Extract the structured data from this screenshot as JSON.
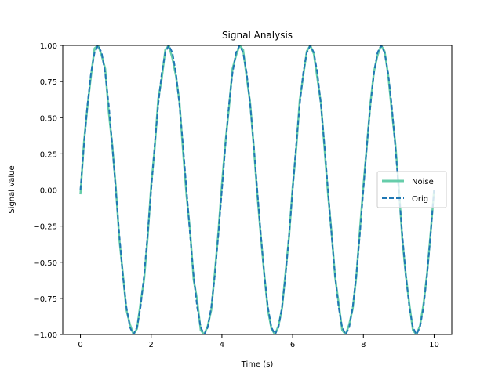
{
  "chart_data": {
    "type": "line",
    "title": "Signal Analysis",
    "xlabel": "Time (s)",
    "ylabel": "Signal Value",
    "xlim": [
      -0.5,
      10.5
    ],
    "ylim": [
      -1.0,
      1.0
    ],
    "x_ticks": [
      0,
      2,
      4,
      6,
      8,
      10
    ],
    "x_tick_labels": [
      "0",
      "2",
      "4",
      "6",
      "8",
      "10"
    ],
    "y_ticks": [
      -1.0,
      -0.75,
      -0.5,
      -0.25,
      0.0,
      0.25,
      0.5,
      0.75,
      1.0
    ],
    "y_tick_labels": [
      "−1.00",
      "−0.75",
      "−0.50",
      "−0.25",
      "0.00",
      "0.25",
      "0.50",
      "0.75",
      "1.00"
    ],
    "grid": false,
    "legend_position": "center-right",
    "series": [
      {
        "name": "Noise",
        "color": "#66cdaa",
        "style": "solid",
        "description_x_range": [
          0,
          10
        ],
        "x": [
          0.0,
          0.1,
          0.2,
          0.3,
          0.4,
          0.5,
          0.6,
          0.7,
          0.8,
          0.9,
          1.0,
          1.1,
          1.2,
          1.3,
          1.4,
          1.5,
          1.6,
          1.7,
          1.8,
          1.9,
          2.0,
          2.1,
          2.2,
          2.3,
          2.4,
          2.5,
          2.6,
          2.7,
          2.8,
          2.9,
          3.0,
          3.1,
          3.2,
          3.3,
          3.4,
          3.5,
          3.6,
          3.7,
          3.8,
          3.9,
          4.0,
          4.1,
          4.2,
          4.3,
          4.4,
          4.5,
          4.6,
          4.7,
          4.8,
          4.9,
          5.0,
          5.1,
          5.2,
          5.3,
          5.4,
          5.5,
          5.6,
          5.7,
          5.8,
          5.9,
          6.0,
          6.1,
          6.2,
          6.3,
          6.4,
          6.5,
          6.6,
          6.7,
          6.8,
          6.9,
          7.0,
          7.1,
          7.2,
          7.3,
          7.4,
          7.5,
          7.6,
          7.7,
          7.8,
          7.9,
          8.0,
          8.1,
          8.2,
          8.3,
          8.4,
          8.5,
          8.6,
          8.7,
          8.8,
          8.9,
          9.0,
          9.1,
          9.2,
          9.3,
          9.4,
          9.5,
          9.6,
          9.7,
          9.8,
          9.9,
          10.0
        ],
        "y": [
          -0.03,
          0.33,
          0.58,
          0.79,
          0.98,
          1.0,
          0.93,
          0.84,
          0.54,
          0.31,
          0.02,
          -0.34,
          -0.58,
          -0.83,
          -0.93,
          -1.0,
          -0.96,
          -0.78,
          -0.62,
          -0.33,
          0.03,
          0.29,
          0.63,
          0.77,
          0.97,
          1.0,
          0.91,
          0.79,
          0.61,
          0.27,
          -0.04,
          -0.28,
          -0.62,
          -0.76,
          -0.97,
          -1.0,
          -0.94,
          -0.83,
          -0.57,
          -0.29,
          0.04,
          0.33,
          0.57,
          0.84,
          0.93,
          1.0,
          0.97,
          0.78,
          0.6,
          0.3,
          -0.03,
          -0.32,
          -0.59,
          -0.83,
          -0.96,
          -1.0,
          -0.94,
          -0.82,
          -0.57,
          -0.32,
          0.02,
          0.28,
          0.62,
          0.79,
          0.96,
          1.0,
          0.94,
          0.77,
          0.6,
          0.29,
          -0.03,
          -0.29,
          -0.6,
          -0.78,
          -0.97,
          -1.0,
          -0.93,
          -0.82,
          -0.6,
          -0.28,
          0.03,
          0.31,
          0.6,
          0.82,
          0.93,
          1.0,
          0.96,
          0.8,
          0.55,
          0.33,
          0.03,
          -0.34,
          -0.59,
          -0.79,
          -0.97,
          -1.0,
          -0.94,
          -0.79,
          -0.58,
          -0.3,
          0.0
        ]
      },
      {
        "name": "Orig",
        "color": "#1f77b4",
        "style": "dashed",
        "formula": "sin(pi * t)",
        "x": [
          0.0,
          0.1,
          0.2,
          0.3,
          0.4,
          0.5,
          0.6,
          0.7,
          0.8,
          0.9,
          1.0,
          1.1,
          1.2,
          1.3,
          1.4,
          1.5,
          1.6,
          1.7,
          1.8,
          1.9,
          2.0,
          2.1,
          2.2,
          2.3,
          2.4,
          2.5,
          2.6,
          2.7,
          2.8,
          2.9,
          3.0,
          3.1,
          3.2,
          3.3,
          3.4,
          3.5,
          3.6,
          3.7,
          3.8,
          3.9,
          4.0,
          4.1,
          4.2,
          4.3,
          4.4,
          4.5,
          4.6,
          4.7,
          4.8,
          4.9,
          5.0,
          5.1,
          5.2,
          5.3,
          5.4,
          5.5,
          5.6,
          5.7,
          5.8,
          5.9,
          6.0,
          6.1,
          6.2,
          6.3,
          6.4,
          6.5,
          6.6,
          6.7,
          6.8,
          6.9,
          7.0,
          7.1,
          7.2,
          7.3,
          7.4,
          7.5,
          7.6,
          7.7,
          7.8,
          7.9,
          8.0,
          8.1,
          8.2,
          8.3,
          8.4,
          8.5,
          8.6,
          8.7,
          8.8,
          8.9,
          9.0,
          9.1,
          9.2,
          9.3,
          9.4,
          9.5,
          9.6,
          9.7,
          9.8,
          9.9,
          10.0
        ],
        "y": [
          0.0,
          0.31,
          0.59,
          0.81,
          0.95,
          1.0,
          0.95,
          0.81,
          0.59,
          0.31,
          0.0,
          -0.31,
          -0.59,
          -0.81,
          -0.95,
          -1.0,
          -0.95,
          -0.81,
          -0.59,
          -0.31,
          0.0,
          0.31,
          0.59,
          0.81,
          0.95,
          1.0,
          0.95,
          0.81,
          0.59,
          0.31,
          0.0,
          -0.31,
          -0.59,
          -0.81,
          -0.95,
          -1.0,
          -0.95,
          -0.81,
          -0.59,
          -0.31,
          0.0,
          0.31,
          0.59,
          0.81,
          0.95,
          1.0,
          0.95,
          0.81,
          0.59,
          0.31,
          0.0,
          -0.31,
          -0.59,
          -0.81,
          -0.95,
          -1.0,
          -0.95,
          -0.81,
          -0.59,
          -0.31,
          0.0,
          0.31,
          0.59,
          0.81,
          0.95,
          1.0,
          0.95,
          0.81,
          0.59,
          0.31,
          0.0,
          -0.31,
          -0.59,
          -0.81,
          -0.95,
          -1.0,
          -0.95,
          -0.81,
          -0.59,
          -0.31,
          0.0,
          0.31,
          0.59,
          0.81,
          0.95,
          1.0,
          0.95,
          0.81,
          0.59,
          0.31,
          0.0,
          -0.31,
          -0.59,
          -0.81,
          -0.95,
          -1.0,
          -0.95,
          -0.81,
          -0.59,
          -0.31,
          0.0
        ]
      }
    ]
  }
}
